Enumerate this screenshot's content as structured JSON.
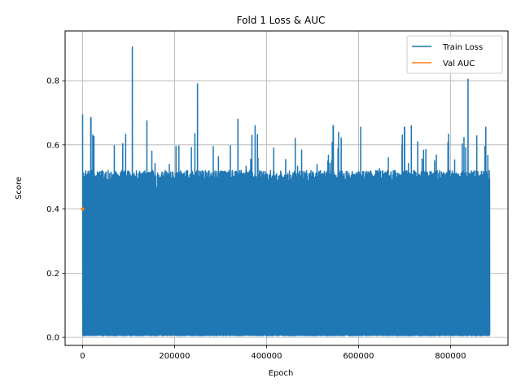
{
  "chart_data": {
    "type": "line",
    "title": "Fold 1 Loss & AUC",
    "xlabel": "Epoch",
    "ylabel": "Score",
    "xlim": [
      -38000,
      925000
    ],
    "ylim": [
      -0.025,
      0.955
    ],
    "x_ticks": [
      0,
      200000,
      400000,
      600000,
      800000
    ],
    "x_tick_labels": [
      "0",
      "200000",
      "400000",
      "600000",
      "800000"
    ],
    "y_ticks": [
      0.0,
      0.2,
      0.4,
      0.6,
      0.8
    ],
    "y_tick_labels": [
      "0.0",
      "0.2",
      "0.4",
      "0.6",
      "0.8"
    ],
    "grid": true,
    "legend_position": "top-right",
    "series": [
      {
        "name": "Train Loss",
        "color": "#1f77b4",
        "x_range": [
          0,
          885000
        ],
        "band_low": 0.005,
        "band_high_typical": 0.5,
        "notable_peaks": [
          {
            "x": 0,
            "y": 0.695
          },
          {
            "x": 18000,
            "y": 0.685
          },
          {
            "x": 108000,
            "y": 0.905
          },
          {
            "x": 140000,
            "y": 0.675
          },
          {
            "x": 250000,
            "y": 0.79
          },
          {
            "x": 338000,
            "y": 0.68
          },
          {
            "x": 375000,
            "y": 0.66
          },
          {
            "x": 545000,
            "y": 0.66
          },
          {
            "x": 605000,
            "y": 0.655
          },
          {
            "x": 700000,
            "y": 0.655
          },
          {
            "x": 715000,
            "y": 0.66
          },
          {
            "x": 838000,
            "y": 0.805
          },
          {
            "x": 877000,
            "y": 0.655
          }
        ]
      },
      {
        "name": "Val AUC",
        "color": "#ff7f0e",
        "x": [
          0
        ],
        "y": [
          0.4
        ]
      }
    ]
  }
}
